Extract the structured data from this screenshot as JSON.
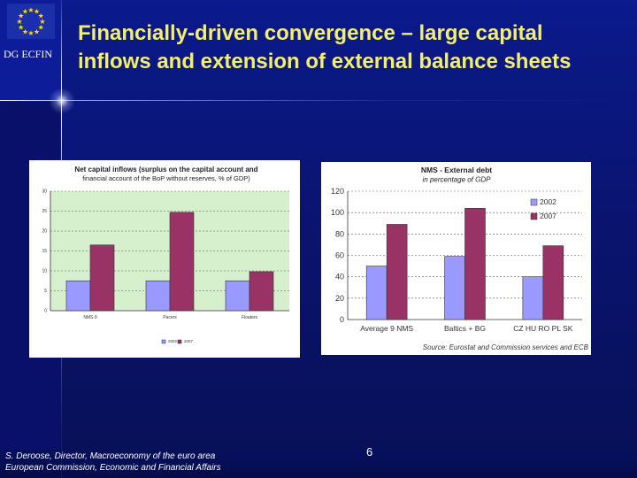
{
  "header": {
    "org_label": "DG ECFIN",
    "title_line1": "Financially-driven convergence – large capital",
    "title_line2": "inflows and extension of external balance sheets"
  },
  "footer": {
    "line1": "S. Deroose, Director, Macroeconomy of the euro area",
    "line2": "European Commission, Economic and Financial Affairs",
    "page_number": "6"
  },
  "colors": {
    "series_2002": "#9999ff",
    "series_2007": "#993366",
    "chart1_plot_bg": "#d6efcc",
    "chart2_plot_bg": "#ffffff"
  },
  "chart_data": [
    {
      "type": "bar",
      "title": "Net capital inflows (surplus on the capital account and",
      "subtitle": "financial account of the BoP without reserves, % of GDP)",
      "categories": [
        "NMS 9",
        "Pacers",
        "Floaters"
      ],
      "ylim": [
        0,
        30
      ],
      "yticks": [
        0,
        5,
        10,
        15,
        20,
        25,
        30
      ],
      "grid": true,
      "legend": "bottom-center",
      "series": [
        {
          "name": "2002",
          "values": [
            7.5,
            7.5,
            7.5
          ]
        },
        {
          "name": "2007",
          "values": [
            16.5,
            24.7,
            9.8
          ]
        }
      ]
    },
    {
      "type": "bar",
      "title": "NMS - External debt",
      "subtitle": "in percentage of GDP",
      "categories": [
        "Average 9 NMS",
        "Baltics + BG",
        "CZ HU RO PL SK"
      ],
      "ylim": [
        0,
        120
      ],
      "yticks": [
        0,
        20,
        40,
        60,
        80,
        100,
        120
      ],
      "grid": true,
      "legend": "top-right",
      "source": "Source: Eurostat and Commission services and ECB",
      "series": [
        {
          "name": "2002",
          "values": [
            50,
            59,
            40
          ]
        },
        {
          "name": "2007",
          "values": [
            89,
            104,
            69
          ]
        }
      ]
    }
  ]
}
